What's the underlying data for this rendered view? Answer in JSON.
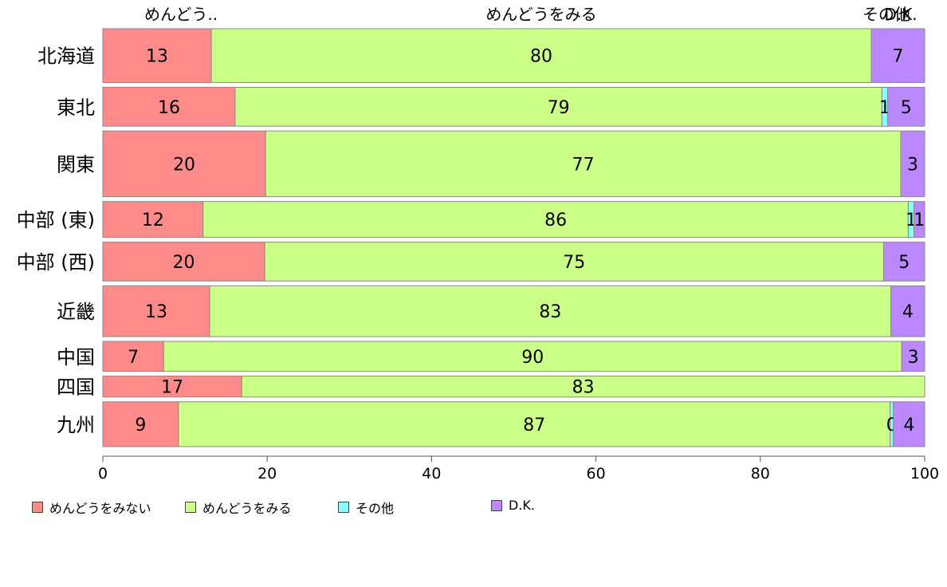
{
  "chart_data": {
    "type": "bar",
    "orientation": "horizontal",
    "stacked": true,
    "percent": true,
    "categories": [
      "北海道",
      "東北",
      "関東",
      "中部 (東)",
      "中部 (西)",
      "近畿",
      "中国",
      "四国",
      "九州"
    ],
    "series": [
      {
        "name": "めんどうをみない",
        "short_label": "めんどう..",
        "color": "#ff8a8a",
        "values": [
          13.2,
          16.1,
          19.8,
          12.2,
          19.7,
          13.0,
          7.4,
          16.9,
          9.2
        ]
      },
      {
        "name": "めんどうをみる",
        "short_label": "めんどうをみる",
        "color": "#ccff88",
        "values": [
          80.3,
          78.7,
          77.3,
          85.8,
          75.3,
          82.9,
          89.8,
          83.1,
          86.6
        ]
      },
      {
        "name": "その他",
        "short_label": "その他",
        "color": "#88ffff",
        "values": [
          0.0,
          0.7,
          0.0,
          0.7,
          0.0,
          0.0,
          0.0,
          0.0,
          0.4
        ]
      },
      {
        "name": "D.K.",
        "short_label": "D.K.",
        "color": "#bb88ff",
        "values": [
          6.5,
          4.5,
          2.9,
          1.3,
          5.0,
          4.1,
          2.8,
          0.0,
          3.8
        ]
      }
    ],
    "row_weights": [
      1.8,
      1.3,
      2.2,
      1.2,
      1.3,
      1.7,
      1.0,
      0.7,
      1.5
    ],
    "top_labels": [
      "めんどう..",
      "めんどうをみる",
      "その他",
      "D.K."
    ],
    "xlim": [
      0,
      100
    ],
    "xticks": [
      0,
      20,
      40,
      60,
      80,
      100
    ],
    "legend_position": "bottom"
  }
}
